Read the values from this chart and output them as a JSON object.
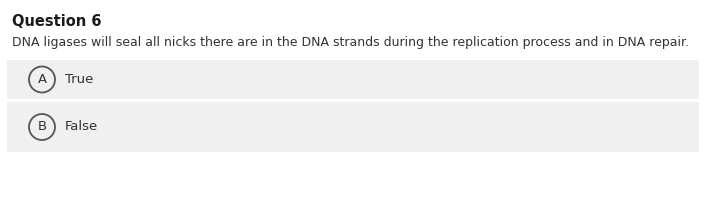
{
  "title": "Question 6",
  "question": "DNA ligases will seal all nicks there are in the DNA strands during the replication process and in DNA repair.",
  "options": [
    {
      "label": "A",
      "text": "True"
    },
    {
      "label": "B",
      "text": "False"
    }
  ],
  "bg_color": "#ffffff",
  "option_bg_color": "#f0f0f0",
  "title_fontsize": 10.5,
  "question_fontsize": 9.0,
  "option_fontsize": 9.5,
  "title_color": "#1a1a1a",
  "question_color": "#333333",
  "option_text_color": "#333333",
  "circle_edge_color": "#555555"
}
